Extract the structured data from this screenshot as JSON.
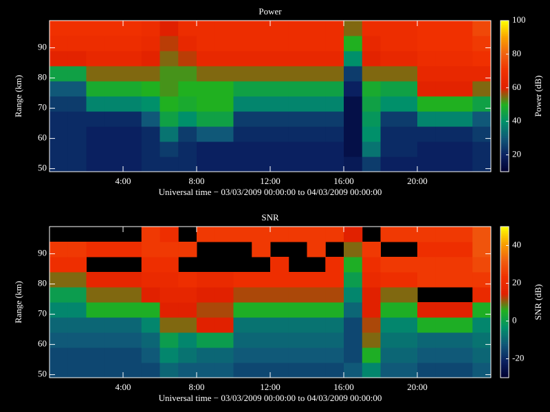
{
  "chart_data": [
    {
      "type": "heatmap",
      "title": "Power",
      "xlabel": "Universal time − 03/03/2009 00:00:00 to 04/03/2009 00:00:00",
      "ylabel": "Range (km)",
      "colorbar_label": "Power (dB)",
      "x": [
        0.5,
        1.5,
        2.5,
        3.5,
        4.5,
        5.5,
        6.5,
        7.5,
        8.5,
        9.5,
        10.5,
        11.5,
        12.5,
        13.5,
        14.5,
        15.5,
        16.5,
        17.5,
        18.5,
        19.5,
        20.5,
        21.5,
        22.5,
        23.5
      ],
      "y": [
        51.5,
        56.5,
        61.5,
        66.5,
        71.5,
        76.5,
        81.5,
        86.5,
        91.5,
        96.5
      ],
      "z": [
        [
          22,
          22,
          20,
          20,
          20,
          22,
          22,
          22,
          20,
          20,
          20,
          20,
          20,
          20,
          20,
          20,
          18,
          25,
          20,
          20,
          20,
          20,
          20,
          22
        ],
        [
          22,
          22,
          20,
          20,
          20,
          22,
          25,
          22,
          20,
          20,
          20,
          20,
          20,
          20,
          20,
          20,
          15,
          35,
          22,
          22,
          20,
          20,
          20,
          22
        ],
        [
          22,
          22,
          20,
          20,
          20,
          22,
          35,
          25,
          30,
          30,
          22,
          22,
          22,
          22,
          22,
          22,
          15,
          40,
          22,
          22,
          22,
          22,
          22,
          25
        ],
        [
          22,
          22,
          22,
          22,
          22,
          30,
          45,
          40,
          45,
          45,
          25,
          25,
          25,
          25,
          25,
          25,
          15,
          42,
          25,
          25,
          38,
          38,
          38,
          30
        ],
        [
          25,
          25,
          38,
          38,
          38,
          40,
          50,
          48,
          50,
          50,
          38,
          38,
          38,
          38,
          38,
          38,
          15,
          45,
          40,
          40,
          50,
          50,
          50,
          45
        ],
        [
          30,
          30,
          48,
          48,
          48,
          50,
          52,
          50,
          50,
          50,
          45,
          45,
          45,
          45,
          45,
          45,
          20,
          48,
          45,
          45,
          62,
          62,
          62,
          55
        ],
        [
          45,
          45,
          55,
          55,
          55,
          55,
          52,
          52,
          55,
          55,
          55,
          55,
          55,
          55,
          55,
          55,
          25,
          55,
          55,
          55,
          65,
          65,
          65,
          65
        ],
        [
          62,
          62,
          65,
          65,
          65,
          62,
          55,
          58,
          65,
          65,
          65,
          65,
          65,
          65,
          65,
          65,
          40,
          62,
          65,
          65,
          68,
          68,
          68,
          70
        ],
        [
          68,
          68,
          68,
          68,
          68,
          66,
          58,
          65,
          68,
          68,
          68,
          68,
          68,
          68,
          68,
          68,
          50,
          65,
          68,
          68,
          70,
          70,
          70,
          72
        ],
        [
          70,
          70,
          70,
          70,
          70,
          68,
          60,
          68,
          68,
          68,
          68,
          68,
          68,
          68,
          68,
          68,
          55,
          68,
          68,
          68,
          70,
          70,
          70,
          75
        ]
      ],
      "xlim": [
        0,
        24
      ],
      "xticks": [
        {
          "value": 4,
          "label": "4:00"
        },
        {
          "value": 8,
          "label": "8:00"
        },
        {
          "value": 12,
          "label": "12:00"
        },
        {
          "value": 16,
          "label": "16:00"
        },
        {
          "value": 20,
          "label": "20:00"
        }
      ],
      "ylim": [
        49,
        99
      ],
      "yticks": [
        50,
        60,
        70,
        80,
        90
      ],
      "clim": [
        10,
        100
      ],
      "cticks": [
        20,
        40,
        60,
        80,
        100
      ],
      "colormap": [
        "#000030",
        "#0a2060",
        "#105878",
        "#00906a",
        "#20b020",
        "#e02000",
        "#f03000",
        "#f06010",
        "#f8a000",
        "#ffff00"
      ]
    },
    {
      "type": "heatmap",
      "title": "SNR",
      "xlabel": "Universal time − 03/03/2009 00:00:00 to 04/03/2009 00:00:00",
      "ylabel": "Range (km)",
      "colorbar_label": "SNR (dB)",
      "x": [
        0.5,
        1.5,
        2.5,
        3.5,
        4.5,
        5.5,
        6.5,
        7.5,
        8.5,
        9.5,
        10.5,
        11.5,
        12.5,
        13.5,
        14.5,
        15.5,
        16.5,
        17.5,
        18.5,
        19.5,
        20.5,
        21.5,
        22.5,
        23.5
      ],
      "y": [
        51.5,
        56.5,
        61.5,
        66.5,
        71.5,
        76.5,
        81.5,
        86.5,
        91.5,
        96.5
      ],
      "z": [
        [
          -15,
          -15,
          -15,
          -15,
          -15,
          -15,
          -10,
          -12,
          -12,
          -12,
          -15,
          -15,
          -15,
          -15,
          -15,
          -15,
          -12,
          -5,
          -12,
          -12,
          -15,
          -15,
          -15,
          -12
        ],
        [
          -15,
          -15,
          -15,
          -15,
          -15,
          -12,
          -5,
          -8,
          -10,
          -10,
          -12,
          -12,
          -12,
          -12,
          -12,
          -12,
          -15,
          5,
          -10,
          -10,
          -12,
          -12,
          -12,
          -10
        ],
        [
          -12,
          -12,
          -12,
          -12,
          -12,
          -10,
          0,
          -5,
          0,
          0,
          -10,
          -10,
          -10,
          -10,
          -10,
          -10,
          -15,
          10,
          -8,
          -8,
          -10,
          -10,
          -10,
          -8
        ],
        [
          -10,
          -10,
          -10,
          -10,
          -10,
          -5,
          10,
          10,
          15,
          15,
          -8,
          -8,
          -8,
          -8,
          -8,
          -8,
          -15,
          12,
          -5,
          -5,
          5,
          5,
          5,
          -5
        ],
        [
          -5,
          -5,
          5,
          5,
          5,
          5,
          15,
          15,
          12,
          12,
          5,
          5,
          5,
          5,
          5,
          5,
          -10,
          15,
          5,
          5,
          15,
          15,
          15,
          5
        ],
        [
          0,
          0,
          10,
          10,
          10,
          15,
          18,
          18,
          15,
          15,
          12,
          12,
          12,
          12,
          12,
          12,
          -5,
          15,
          10,
          10,
          null,
          null,
          null,
          20
        ],
        [
          10,
          10,
          18,
          18,
          18,
          20,
          20,
          22,
          20,
          20,
          22,
          22,
          22,
          22,
          22,
          22,
          0,
          20,
          22,
          22,
          25,
          25,
          25,
          25
        ],
        [
          22,
          22,
          null,
          null,
          null,
          22,
          22,
          null,
          null,
          null,
          null,
          null,
          22,
          null,
          null,
          22,
          5,
          22,
          25,
          25,
          25,
          25,
          25,
          28
        ],
        [
          25,
          25,
          22,
          22,
          22,
          25,
          25,
          25,
          null,
          null,
          null,
          25,
          null,
          null,
          25,
          null,
          10,
          25,
          null,
          null,
          22,
          22,
          22,
          30
        ],
        [
          null,
          null,
          null,
          null,
          null,
          25,
          22,
          null,
          25,
          25,
          25,
          25,
          25,
          25,
          25,
          25,
          15,
          null,
          25,
          25,
          25,
          25,
          25,
          30
        ]
      ],
      "xlim": [
        0,
        24
      ],
      "xticks": [
        {
          "value": 4,
          "label": "4:00"
        },
        {
          "value": 8,
          "label": "8:00"
        },
        {
          "value": 12,
          "label": "12:00"
        },
        {
          "value": 16,
          "label": "16:00"
        },
        {
          "value": 20,
          "label": "20:00"
        }
      ],
      "ylim": [
        49,
        99
      ],
      "yticks": [
        50,
        60,
        70,
        80,
        90
      ],
      "clim": [
        -30,
        50
      ],
      "cticks": [
        -20,
        0,
        20,
        40
      ],
      "colormap": [
        "#000030",
        "#0a2060",
        "#105878",
        "#00906a",
        "#20b020",
        "#e02000",
        "#f03000",
        "#f06010",
        "#f8a000",
        "#ffff00"
      ]
    }
  ]
}
